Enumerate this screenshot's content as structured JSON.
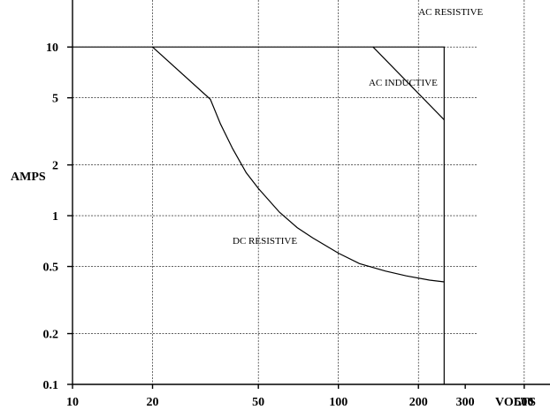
{
  "chart_data": {
    "type": "line",
    "title": "",
    "xlabel": "VOLTS",
    "ylabel": "AMPS",
    "x_scale": "log",
    "y_scale": "log",
    "xlim": [
      10,
      625
    ],
    "ylim": [
      0.1,
      19
    ],
    "grid": true,
    "x_ticks": [
      {
        "value": 10,
        "label": "10"
      },
      {
        "value": 20,
        "label": "20"
      },
      {
        "value": 50,
        "label": "50"
      },
      {
        "value": 100,
        "label": "100"
      },
      {
        "value": 200,
        "label": "200"
      },
      {
        "value": 300,
        "label": "300"
      },
      {
        "value": 500,
        "label": "500"
      }
    ],
    "x_gridlines": [
      20,
      50,
      100,
      200,
      500
    ],
    "y_ticks": [
      {
        "value": 10,
        "label": "10"
      },
      {
        "value": 5,
        "label": "5"
      },
      {
        "value": 2,
        "label": "2"
      },
      {
        "value": 1,
        "label": "1"
      },
      {
        "value": 0.5,
        "label": "0.5"
      },
      {
        "value": 0.2,
        "label": "0.2"
      },
      {
        "value": 0.1,
        "label": "0.1"
      }
    ],
    "y_gridlines": [
      10,
      5,
      2,
      1,
      0.5,
      0.2,
      0.1
    ],
    "series": [
      {
        "name": "AC RESISTIVE",
        "label_at": [
          200,
          15.5
        ],
        "points": [
          [
            10,
            10
          ],
          [
            250,
            10
          ],
          [
            250,
            0.1
          ]
        ]
      },
      {
        "name": "AC INDUCTIVE",
        "label_at": [
          130,
          5.9
        ],
        "points": [
          [
            135,
            10
          ],
          [
            250,
            3.7
          ]
        ]
      },
      {
        "name": "DC RESISTIVE",
        "label_at": [
          40,
          0.68
        ],
        "points": [
          [
            20,
            10
          ],
          [
            33,
            4.9
          ],
          [
            36,
            3.5
          ],
          [
            40,
            2.5
          ],
          [
            45,
            1.8
          ],
          [
            50,
            1.45
          ],
          [
            60,
            1.05
          ],
          [
            70,
            0.85
          ],
          [
            80,
            0.74
          ],
          [
            100,
            0.6
          ],
          [
            120,
            0.52
          ],
          [
            150,
            0.47
          ],
          [
            180,
            0.44
          ],
          [
            220,
            0.415
          ],
          [
            250,
            0.405
          ]
        ]
      }
    ]
  }
}
